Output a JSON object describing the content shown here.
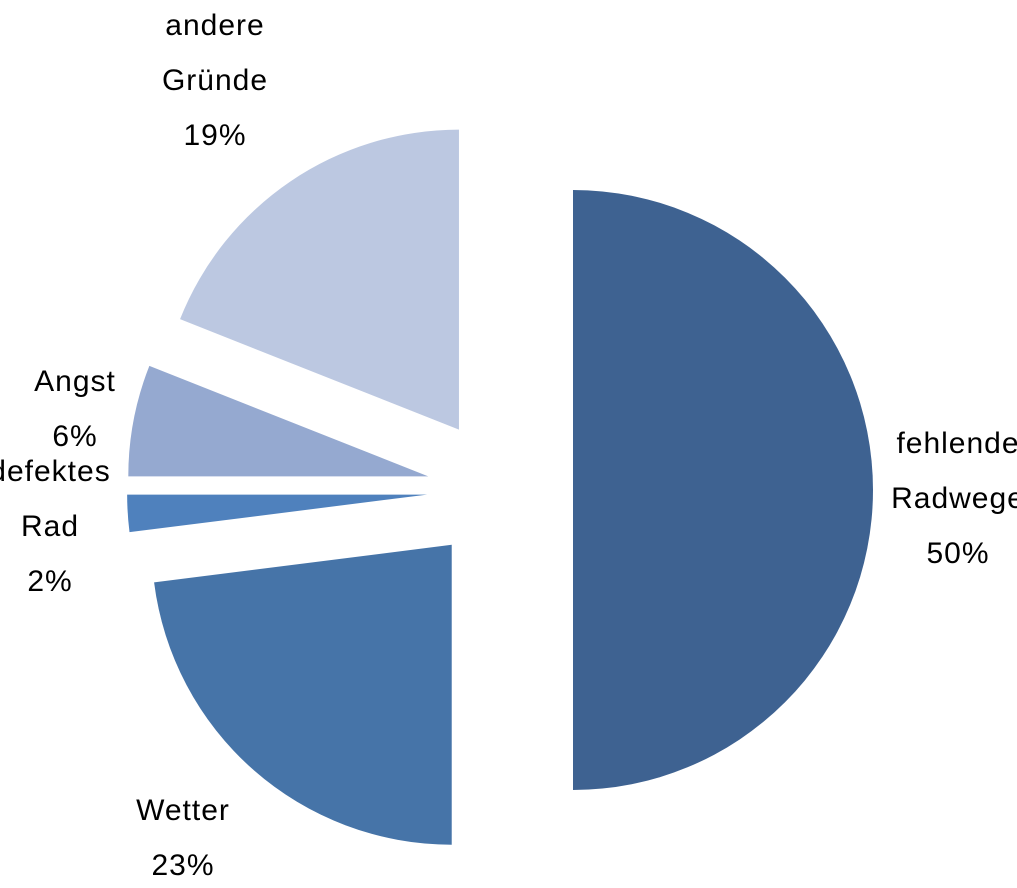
{
  "chart_data": {
    "type": "pie",
    "categories": [
      "fehlende Radwege",
      "Wetter",
      "defektes Rad",
      "Angst",
      "andere Gründe"
    ],
    "values": [
      50,
      23,
      2,
      6,
      19
    ],
    "value_labels": [
      "50%",
      "23%",
      "2%",
      "6%",
      "19%"
    ],
    "colors": [
      "#3e6291",
      "#4674a8",
      "#4f81bd",
      "#95a9d0",
      "#bcc8e1"
    ],
    "exploded": true
  }
}
